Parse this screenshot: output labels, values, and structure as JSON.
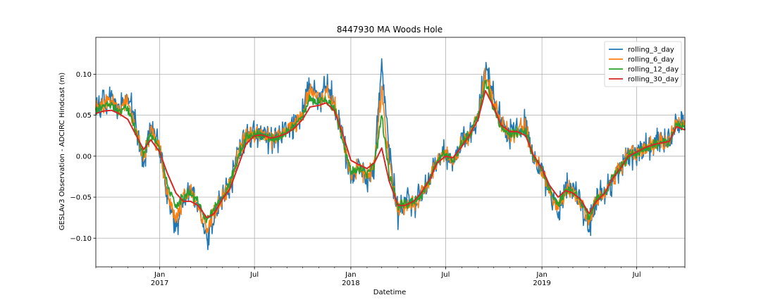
{
  "chart_data": {
    "type": "line",
    "title": "8447930 MA Woods Hole",
    "xlabel": "Datetime",
    "ylabel": "GESLAv3 Observation - ADCIRC Hindcast (m)",
    "xlim": [
      "2016-09-01",
      "2019-10-01"
    ],
    "ylim": [
      -0.135,
      0.145
    ],
    "grid": true,
    "legend_position": "top-right",
    "x_ticks": [
      {
        "date": "2017-01-01",
        "month": "Jan",
        "year": "2017"
      },
      {
        "date": "2017-07-01",
        "month": "Jul",
        "year": ""
      },
      {
        "date": "2018-01-01",
        "month": "Jan",
        "year": "2018"
      },
      {
        "date": "2018-07-01",
        "month": "Jul",
        "year": ""
      },
      {
        "date": "2019-01-01",
        "month": "Jan",
        "year": "2019"
      },
      {
        "date": "2019-07-01",
        "month": "Jul",
        "year": ""
      }
    ],
    "y_ticks": [
      {
        "value": -0.1,
        "label": "−0.10"
      },
      {
        "value": -0.05,
        "label": "−0.05"
      },
      {
        "value": 0.0,
        "label": "0.00"
      },
      {
        "value": 0.05,
        "label": "0.05"
      },
      {
        "value": 0.1,
        "label": "0.10"
      }
    ],
    "x": [
      "2016-09-01",
      "2016-09-15",
      "2016-10-01",
      "2016-10-15",
      "2016-11-01",
      "2016-11-15",
      "2016-12-01",
      "2016-12-15",
      "2017-01-01",
      "2017-01-15",
      "2017-02-01",
      "2017-02-15",
      "2017-03-01",
      "2017-03-15",
      "2017-04-01",
      "2017-04-15",
      "2017-05-01",
      "2017-05-15",
      "2017-06-01",
      "2017-06-15",
      "2017-07-01",
      "2017-07-15",
      "2017-08-01",
      "2017-08-15",
      "2017-09-01",
      "2017-09-15",
      "2017-10-01",
      "2017-10-15",
      "2017-11-01",
      "2017-11-15",
      "2017-12-01",
      "2017-12-15",
      "2018-01-01",
      "2018-01-15",
      "2018-02-01",
      "2018-02-15",
      "2018-03-01",
      "2018-03-15",
      "2018-04-01",
      "2018-04-15",
      "2018-05-01",
      "2018-05-15",
      "2018-06-01",
      "2018-06-15",
      "2018-07-01",
      "2018-07-15",
      "2018-08-01",
      "2018-08-15",
      "2018-09-01",
      "2018-09-15",
      "2018-10-01",
      "2018-10-15",
      "2018-11-01",
      "2018-11-15",
      "2018-12-01",
      "2018-12-15",
      "2019-01-01",
      "2019-01-15",
      "2019-02-01",
      "2019-02-15",
      "2019-03-01",
      "2019-03-15",
      "2019-04-01",
      "2019-04-15",
      "2019-05-01",
      "2019-05-15",
      "2019-06-01",
      "2019-06-15",
      "2019-07-01",
      "2019-07-15",
      "2019-08-01",
      "2019-08-15",
      "2019-09-01",
      "2019-09-15",
      "2019-10-01"
    ],
    "series": [
      {
        "name": "rolling_3_day",
        "color": "#1f77b4",
        "width": 1.6,
        "values": [
          0.06,
          0.065,
          0.072,
          0.058,
          0.078,
          0.04,
          -0.005,
          0.035,
          0.015,
          -0.045,
          -0.085,
          -0.055,
          -0.04,
          -0.06,
          -0.1,
          -0.075,
          -0.05,
          -0.035,
          0.005,
          0.025,
          0.03,
          0.028,
          0.018,
          0.025,
          0.034,
          0.04,
          0.055,
          0.09,
          0.07,
          0.085,
          0.065,
          0.03,
          -0.03,
          -0.01,
          -0.03,
          -0.015,
          0.115,
          0.0,
          -0.07,
          -0.055,
          -0.06,
          -0.05,
          -0.03,
          0.0,
          0.005,
          -0.01,
          0.02,
          0.025,
          0.05,
          0.11,
          0.07,
          0.04,
          0.025,
          0.035,
          0.04,
          -0.005,
          -0.02,
          -0.04,
          -0.07,
          -0.035,
          -0.04,
          -0.06,
          -0.085,
          -0.05,
          -0.045,
          -0.03,
          -0.01,
          0.0,
          0.005,
          0.01,
          0.015,
          0.02,
          0.015,
          0.045,
          0.04
        ]
      },
      {
        "name": "rolling_6_day",
        "color": "#ff7f0e",
        "width": 1.6,
        "values": [
          0.058,
          0.063,
          0.068,
          0.056,
          0.07,
          0.036,
          -0.002,
          0.032,
          0.012,
          -0.042,
          -0.075,
          -0.052,
          -0.042,
          -0.058,
          -0.092,
          -0.07,
          -0.052,
          -0.034,
          0.003,
          0.024,
          0.028,
          0.027,
          0.019,
          0.024,
          0.033,
          0.038,
          0.053,
          0.08,
          0.067,
          0.078,
          0.062,
          0.028,
          -0.025,
          -0.012,
          -0.025,
          -0.012,
          0.085,
          -0.01,
          -0.068,
          -0.058,
          -0.058,
          -0.05,
          -0.028,
          -0.002,
          0.003,
          -0.008,
          0.018,
          0.026,
          0.05,
          0.1,
          0.065,
          0.038,
          0.025,
          0.033,
          0.035,
          -0.002,
          -0.02,
          -0.04,
          -0.065,
          -0.038,
          -0.042,
          -0.058,
          -0.08,
          -0.052,
          -0.046,
          -0.028,
          -0.012,
          0.0,
          0.004,
          0.01,
          0.014,
          0.018,
          0.016,
          0.042,
          0.036
        ]
      },
      {
        "name": "rolling_12_day",
        "color": "#2ca02c",
        "width": 1.8,
        "values": [
          0.055,
          0.06,
          0.062,
          0.054,
          0.058,
          0.032,
          0.002,
          0.028,
          0.01,
          -0.035,
          -0.06,
          -0.05,
          -0.045,
          -0.055,
          -0.08,
          -0.065,
          -0.05,
          -0.032,
          0.002,
          0.022,
          0.026,
          0.026,
          0.02,
          0.023,
          0.03,
          0.036,
          0.05,
          0.07,
          0.064,
          0.07,
          0.058,
          0.025,
          -0.02,
          -0.014,
          -0.02,
          -0.01,
          0.05,
          -0.02,
          -0.062,
          -0.058,
          -0.056,
          -0.048,
          -0.026,
          -0.004,
          0.002,
          -0.006,
          0.016,
          0.026,
          0.048,
          0.09,
          0.06,
          0.036,
          0.026,
          0.03,
          0.03,
          0.0,
          -0.018,
          -0.038,
          -0.06,
          -0.04,
          -0.043,
          -0.055,
          -0.075,
          -0.053,
          -0.046,
          -0.026,
          -0.013,
          0.0,
          0.004,
          0.01,
          0.013,
          0.017,
          0.017,
          0.04,
          0.034
        ]
      },
      {
        "name": "rolling_30_day",
        "color": "#d62728",
        "width": 2.0,
        "values": [
          0.052,
          0.055,
          0.056,
          0.052,
          0.045,
          0.028,
          0.008,
          0.02,
          0.005,
          -0.02,
          -0.045,
          -0.055,
          -0.055,
          -0.06,
          -0.075,
          -0.07,
          -0.052,
          -0.04,
          -0.01,
          0.015,
          0.025,
          0.026,
          0.022,
          0.024,
          0.028,
          0.034,
          0.045,
          0.06,
          0.062,
          0.065,
          0.055,
          0.03,
          -0.005,
          -0.01,
          -0.015,
          -0.008,
          0.01,
          -0.03,
          -0.06,
          -0.06,
          -0.055,
          -0.045,
          -0.028,
          -0.008,
          0.0,
          -0.002,
          0.012,
          0.025,
          0.045,
          0.08,
          0.06,
          0.038,
          0.03,
          0.03,
          0.025,
          0.002,
          -0.015,
          -0.035,
          -0.05,
          -0.042,
          -0.045,
          -0.052,
          -0.07,
          -0.055,
          -0.045,
          -0.028,
          -0.014,
          0.0,
          0.005,
          0.01,
          0.014,
          0.016,
          0.018,
          0.036,
          0.032
        ]
      }
    ]
  }
}
